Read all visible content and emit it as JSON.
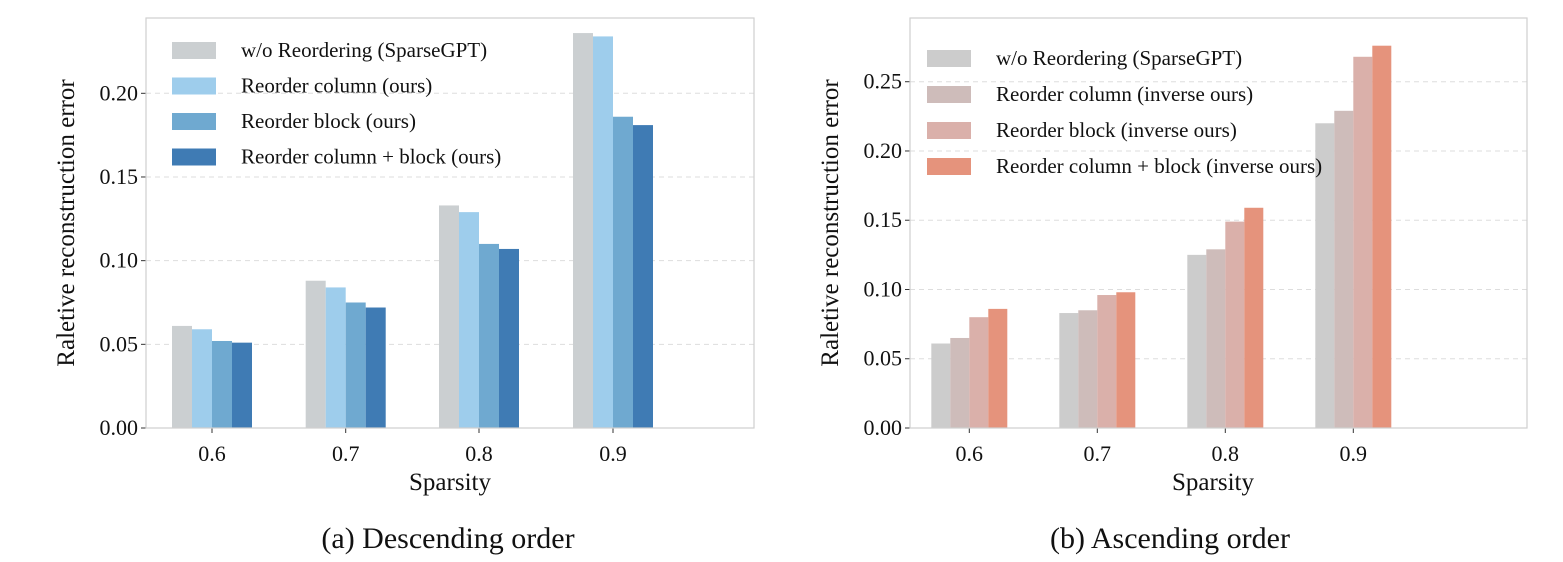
{
  "chart_data": [
    {
      "type": "bar",
      "caption": "(a) Descending order",
      "xlabel": "Sparsity",
      "ylabel": "Raletive reconstruction error",
      "categories": [
        "0.6",
        "0.7",
        "0.8",
        "0.9"
      ],
      "ylim": [
        0,
        0.245
      ],
      "yticks": [
        "0.00",
        "0.05",
        "0.10",
        "0.15",
        "0.20"
      ],
      "grid": "y-dashed",
      "legend_position": "top-left",
      "series": [
        {
          "name": "w/o Reordering (SparseGPT)",
          "color": "#cbcfd1",
          "values": [
            0.061,
            0.088,
            0.133,
            0.236
          ]
        },
        {
          "name": "Reorder column (ours)",
          "color": "#9ecdec",
          "values": [
            0.059,
            0.084,
            0.129,
            0.234
          ]
        },
        {
          "name": "Reorder block (ours)",
          "color": "#6fa9d0",
          "values": [
            0.052,
            0.075,
            0.11,
            0.186
          ]
        },
        {
          "name": "Reorder column + block (ours)",
          "color": "#3f7bb4",
          "values": [
            0.051,
            0.072,
            0.107,
            0.181
          ]
        }
      ]
    },
    {
      "type": "bar",
      "caption": "(b) Ascending order",
      "xlabel": "Sparsity",
      "ylabel": "Raletive reconstruction error",
      "categories": [
        "0.6",
        "0.7",
        "0.8",
        "0.9"
      ],
      "ylim": [
        0,
        0.296
      ],
      "yticks": [
        "0.00",
        "0.05",
        "0.10",
        "0.15",
        "0.20",
        "0.25"
      ],
      "grid": "y-dashed",
      "legend_position": "top-left",
      "series": [
        {
          "name": "w/o Reordering (SparseGPT)",
          "color": "#cccccc",
          "values": [
            0.061,
            0.083,
            0.125,
            0.22
          ]
        },
        {
          "name": "Reorder column (inverse ours)",
          "color": "#cebcba",
          "values": [
            0.065,
            0.085,
            0.129,
            0.229
          ]
        },
        {
          "name": "Reorder block (inverse ours)",
          "color": "#dab0aa",
          "values": [
            0.08,
            0.096,
            0.149,
            0.268
          ]
        },
        {
          "name": "Reorder column + block (inverse ours)",
          "color": "#e5937c",
          "values": [
            0.086,
            0.098,
            0.159,
            0.276
          ]
        }
      ]
    }
  ]
}
